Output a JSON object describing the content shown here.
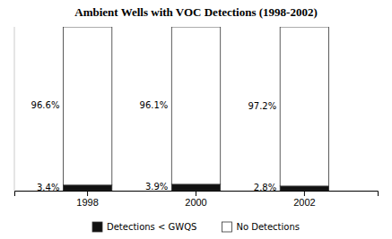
{
  "chart_data": {
    "type": "bar",
    "title": "Ambient Wells with VOC Detections (1998-2002)",
    "categories": [
      "1998",
      "2000",
      "2002"
    ],
    "series": [
      {
        "name": "Detections < GWQS",
        "color": "#111111",
        "values": [
          3.4,
          3.9,
          2.8
        ],
        "value_labels": [
          "3.4%",
          "3.9%",
          "2.8%"
        ]
      },
      {
        "name": "No Detections",
        "color": "#ffffff",
        "values": [
          96.6,
          96.1,
          97.2
        ],
        "value_labels": [
          "96.6%",
          "96.1%",
          "97.2%"
        ]
      }
    ],
    "stacked": true,
    "data_labels": true,
    "ylim": [
      0,
      100
    ],
    "tick_labels": "x",
    "legend": "bottom"
  }
}
